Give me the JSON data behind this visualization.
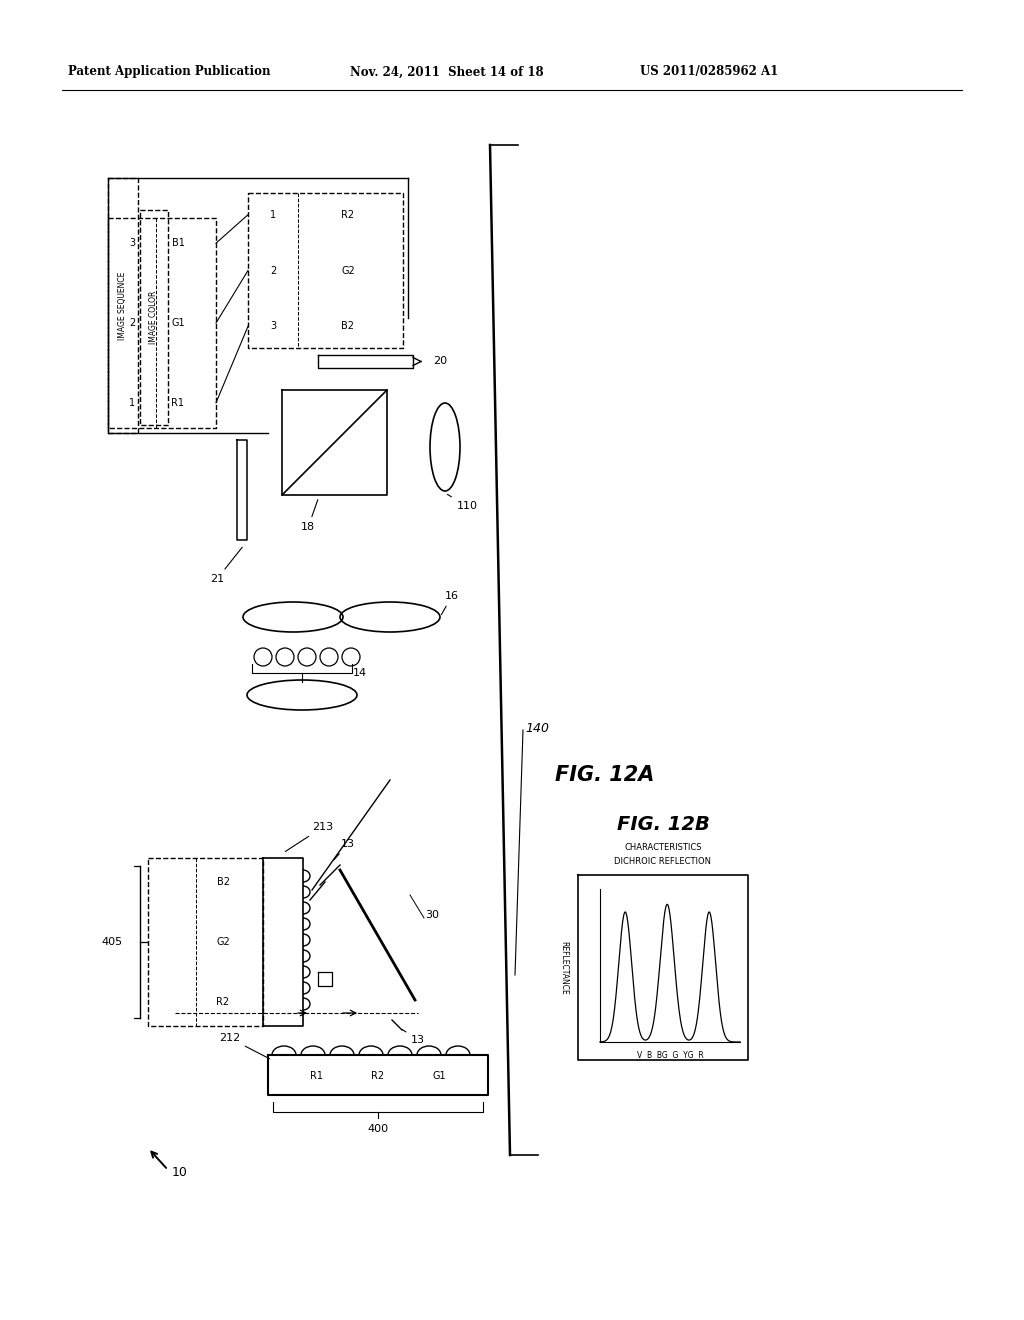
{
  "bg_color": "#ffffff",
  "header_left": "Patent Application Publication",
  "header_mid": "Nov. 24, 2011  Sheet 14 of 18",
  "header_right": "US 2011/0285962 A1",
  "fig12a_label": "FIG. 12A",
  "fig12b_label": "FIG. 12B",
  "fig12b_title1": "DICHROIC REFLECTION",
  "fig12b_title2": "CHARACTERISTICS",
  "fig12b_xlabel": "V  B  BG  G  YG  R",
  "fig12b_ylabel": "REFLECTANCE"
}
